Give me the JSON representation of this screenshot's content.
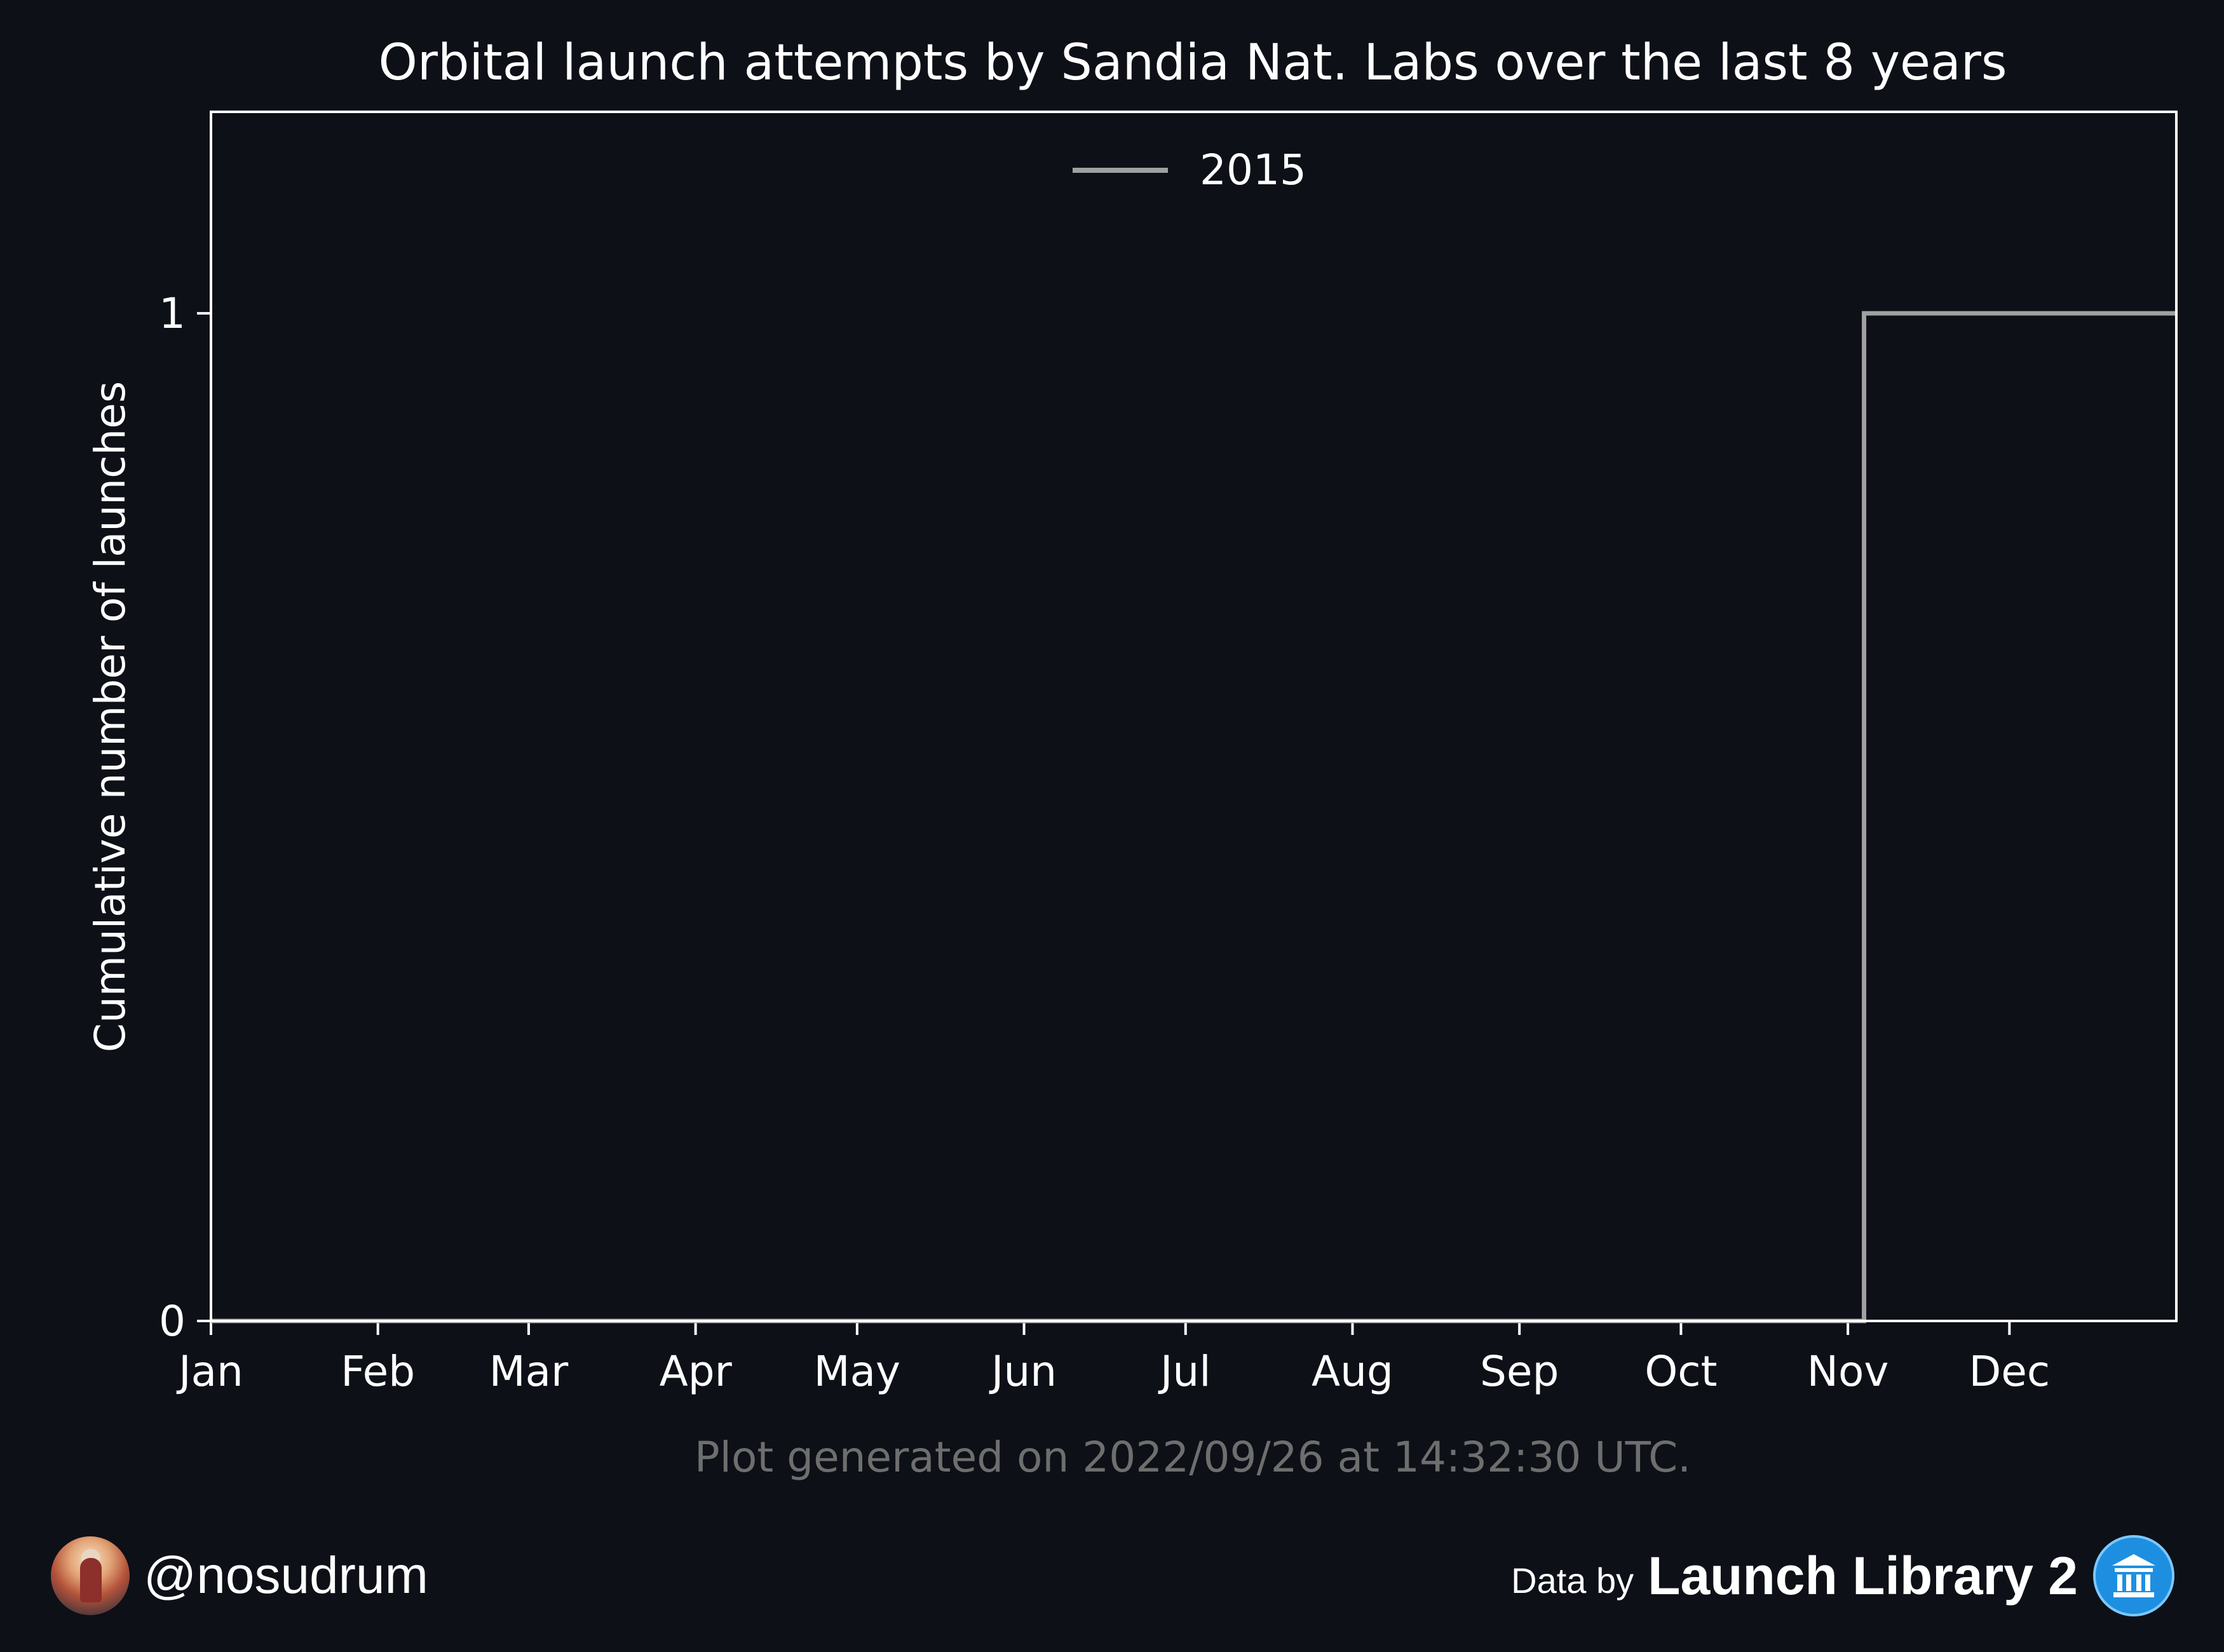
{
  "chart_data": {
    "type": "line",
    "step": true,
    "title": "Orbital launch attempts by Sandia Nat. Labs over the last 8 years",
    "xlabel": "",
    "ylabel": "Cumulative number of launches",
    "x_ticks": [
      "Jan",
      "Feb",
      "Mar",
      "Apr",
      "May",
      "Jun",
      "Jul",
      "Aug",
      "Sep",
      "Oct",
      "Nov",
      "Dec"
    ],
    "x_unit": "day of year",
    "xlim": [
      1,
      366
    ],
    "y_ticks": [
      0,
      1
    ],
    "ylim": [
      0,
      1.2
    ],
    "grid": false,
    "legend_position": "top-center",
    "series": [
      {
        "name": "2015",
        "color": "#a0a0a0",
        "points": [
          {
            "x": 1,
            "y": 0
          },
          {
            "x": 308,
            "y": 0
          },
          {
            "x": 308,
            "y": 1
          },
          {
            "x": 366,
            "y": 1
          }
        ]
      }
    ]
  },
  "footnote": "Plot generated on 2022/09/26 at 14:32:30 UTC.",
  "footer": {
    "handle": "@nosudrum",
    "data_by": "Data by",
    "source": "Launch Library 2",
    "avatar_icon": "astronaut-avatar-icon",
    "source_icon": "launch-library-logo-icon"
  },
  "colors": {
    "background": "#0d1017",
    "axes": "#ffffff",
    "footnote": "#6e6e6e"
  }
}
